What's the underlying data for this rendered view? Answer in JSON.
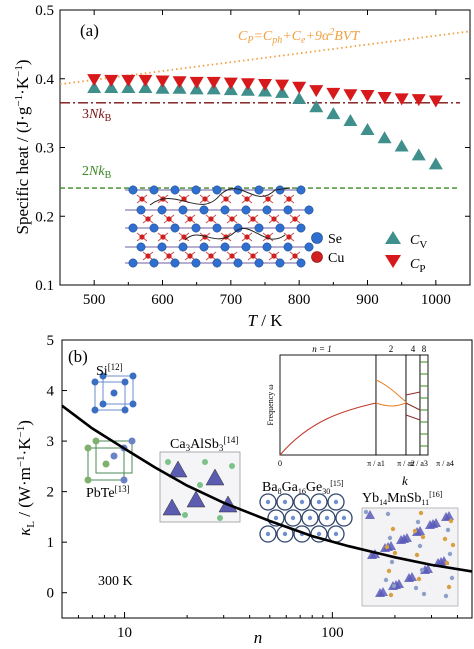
{
  "chart_data": [
    {
      "panel": "(a)",
      "type": "scatter",
      "xlabel": "T / K",
      "ylabel": "Specific heat / (J·g⁻¹·K⁻¹)",
      "xlim": [
        450,
        1050
      ],
      "ylim": [
        0.1,
        0.5
      ],
      "xticks": [
        500,
        600,
        700,
        800,
        900,
        1000
      ],
      "yticks": [
        0.1,
        0.2,
        0.3,
        0.4,
        0.5
      ],
      "grid": false,
      "series": [
        {
          "name": "Cv",
          "label_main": "C",
          "label_sub": "V",
          "marker": "triangle-up",
          "color": "#3f8f8c",
          "x": [
            500,
            525,
            550,
            575,
            600,
            625,
            650,
            675,
            700,
            725,
            750,
            775,
            800,
            825,
            850,
            875,
            900,
            925,
            950,
            975,
            1000
          ],
          "y": [
            0.388,
            0.388,
            0.388,
            0.388,
            0.387,
            0.387,
            0.386,
            0.386,
            0.385,
            0.384,
            0.383,
            0.381,
            0.372,
            0.36,
            0.35,
            0.34,
            0.327,
            0.315,
            0.303,
            0.29,
            0.277
          ]
        },
        {
          "name": "Cp",
          "label_main": "C",
          "label_sub": "P",
          "marker": "triangle-down",
          "color": "#d7191c",
          "x": [
            500,
            525,
            550,
            575,
            600,
            625,
            650,
            675,
            700,
            725,
            750,
            775,
            800,
            825,
            850,
            875,
            900,
            925,
            950,
            975,
            1000
          ],
          "y": [
            0.398,
            0.397,
            0.397,
            0.397,
            0.396,
            0.395,
            0.394,
            0.394,
            0.393,
            0.392,
            0.391,
            0.39,
            0.387,
            0.382,
            0.378,
            0.376,
            0.375,
            0.372,
            0.37,
            0.369,
            0.367
          ]
        }
      ],
      "reference_lines": [
        {
          "label_main": "3Nk",
          "label_sub": "B",
          "style": "dash-dot",
          "color": "#7b1111",
          "y": 0.365
        },
        {
          "label_main": "2Nk",
          "label_sub": "B",
          "style": "dashed",
          "color": "#3a8a23",
          "y": 0.241
        },
        {
          "style": "dotted",
          "color": "#f0a040",
          "x": [
            450,
            1050
          ],
          "y": [
            0.392,
            0.469
          ]
        }
      ],
      "formula": {
        "text": "CP=Cph+Ce+9α²BVT",
        "color": "#f0a040"
      },
      "legend": {
        "position": "bottom-right",
        "atoms": [
          "Se",
          "Cu"
        ],
        "atom_colors": [
          "#2f6fd0",
          "#d21f1f"
        ]
      }
    },
    {
      "panel": "(b)",
      "type": "line",
      "xlabel": "n",
      "ylabel": "κL / (W·m⁻¹·K⁻¹)",
      "xscale": "log",
      "xlim": [
        5,
        470
      ],
      "ylim": [
        -0.5,
        5
      ],
      "xticks": [
        10,
        100
      ],
      "yticks": [
        0,
        1,
        2,
        3,
        4,
        5
      ],
      "series": [
        {
          "name": "",
          "color": "#000000",
          "x": [
            5,
            7,
            10,
            14,
            20,
            30,
            50,
            80,
            120,
            200,
            300,
            470
          ],
          "y": [
            3.7,
            3.25,
            2.85,
            2.48,
            2.12,
            1.78,
            1.42,
            1.12,
            0.92,
            0.7,
            0.55,
            0.42
          ]
        }
      ],
      "annotation": "300 K",
      "materials": [
        {
          "name": "Si",
          "ref": "[12]"
        },
        {
          "name": "PbTe",
          "ref": "[13]"
        },
        {
          "name": "Ca3AlSb3",
          "ref": "[14]"
        },
        {
          "name": "Ba8Ga16Ge30",
          "ref": "[15]"
        },
        {
          "name": "Yb14MnSb11",
          "ref": "[16]"
        }
      ],
      "inset": {
        "ylabel": "Frequency ω",
        "panels": [
          "n = 1",
          "2",
          "4",
          "8"
        ],
        "x_labels": [
          "0",
          "π / a1",
          "π / a2",
          "π / a3",
          "π / a4"
        ],
        "k_label": "k"
      }
    }
  ]
}
